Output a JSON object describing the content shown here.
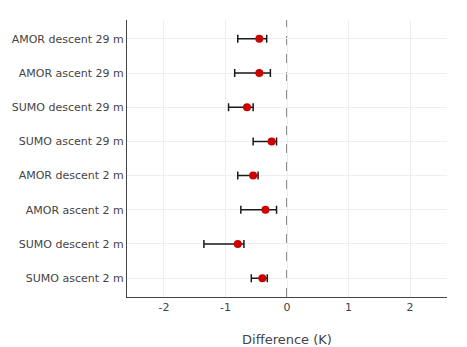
{
  "chart_data": {
    "type": "errorbar",
    "categories": [
      "AMOR descent 29 m",
      "AMOR ascent 29 m",
      "SUMO descent 29 m",
      "SUMO ascent 29 m",
      "AMOR descent 2 m",
      "AMOR ascent 2 m",
      "SUMO descent 2 m",
      "SUMO ascent 2 m"
    ],
    "values": [
      -0.45,
      -0.45,
      -0.65,
      -0.25,
      -0.55,
      -0.35,
      -0.8,
      -0.4
    ],
    "color": "#cc0000",
    "marker": "circle",
    "error_bars": {
      "minus": [
        0.35,
        0.4,
        0.3,
        0.3,
        0.25,
        0.4,
        0.55,
        0.18
      ],
      "plus": [
        0.12,
        0.18,
        0.1,
        0.08,
        0.08,
        0.18,
        0.1,
        0.08
      ],
      "color": "#1a1a1a"
    },
    "reference_line": {
      "x": 0,
      "color": "#1a1a1a",
      "line_style": "dashed"
    },
    "xlabel": "Difference (K)",
    "xlim": [
      -2.6,
      2.6
    ],
    "xticks": [
      -2,
      -1,
      0,
      1,
      2
    ],
    "grid": true
  }
}
